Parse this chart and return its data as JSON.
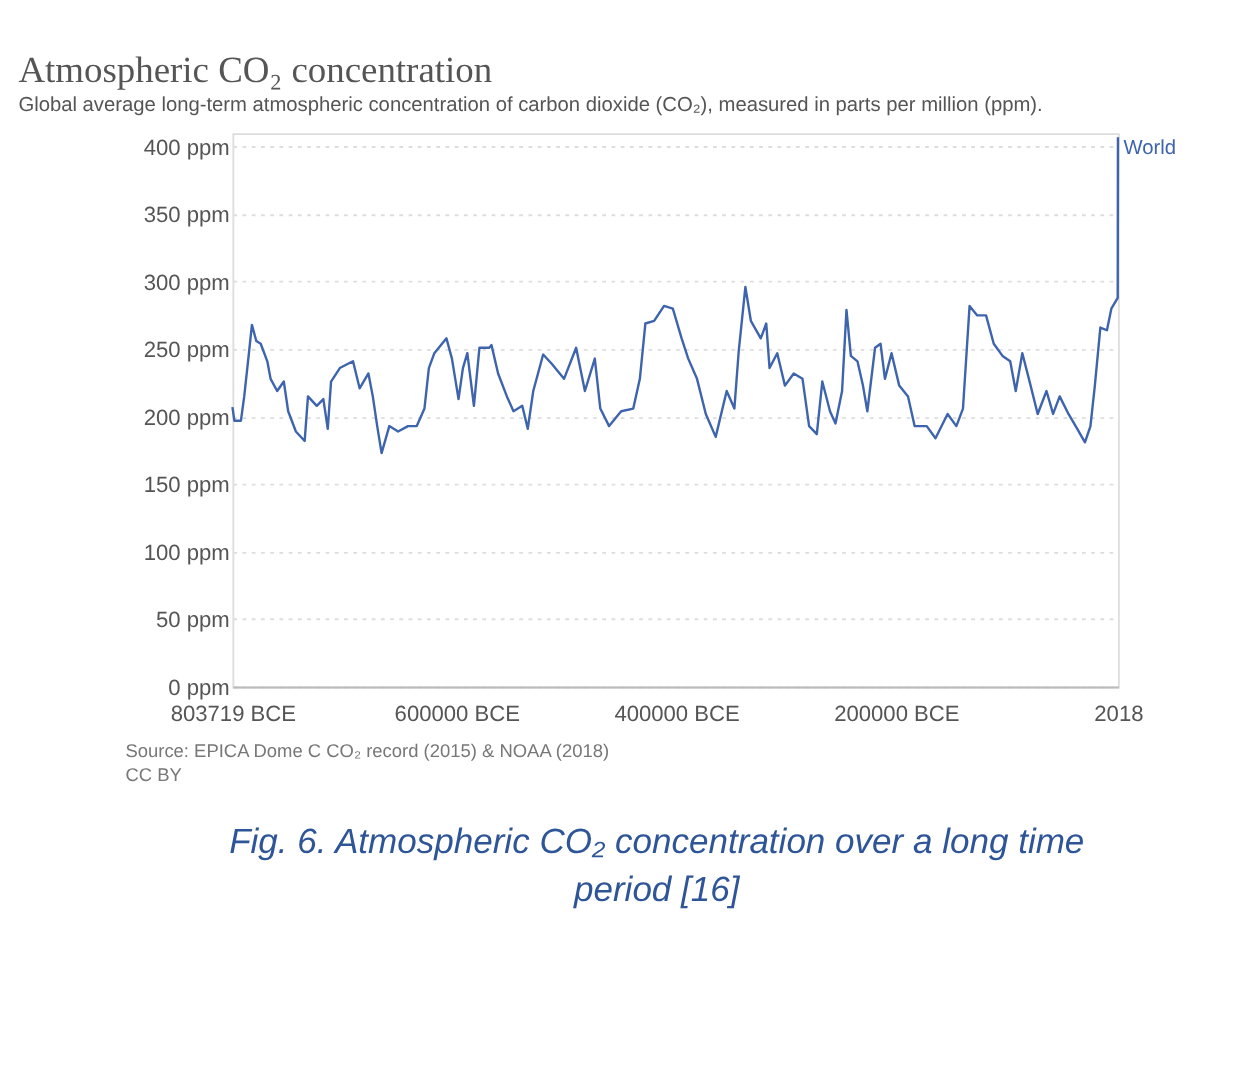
{
  "chart_data": {
    "type": "line",
    "title": "Atmospheric CO₂ concentration",
    "subtitle": "Global average long-term atmospheric concentration of carbon dioxide (CO₂), measured in parts per million (ppm).",
    "x": [
      -803719,
      -802000,
      -796000,
      -793000,
      -789000,
      -786000,
      -782000,
      -778000,
      -772000,
      -769000,
      -763000,
      -757000,
      -753000,
      -746000,
      -738000,
      -735000,
      -727000,
      -721000,
      -717000,
      -714000,
      -706000,
      -699000,
      -694000,
      -688000,
      -680000,
      -676000,
      -672000,
      -668000,
      -661000,
      -653000,
      -644000,
      -636000,
      -629000,
      -625000,
      -620000,
      -609000,
      -604000,
      -598000,
      -594000,
      -590000,
      -584000,
      -579000,
      -570000,
      -568000,
      -562000,
      -554000,
      -548000,
      -540000,
      -535000,
      -530000,
      -521000,
      -513000,
      -502000,
      -491000,
      -483000,
      -474000,
      -469000,
      -461000,
      -450000,
      -439000,
      -433000,
      -428000,
      -420000,
      -411000,
      -403000,
      -395000,
      -389000,
      -381000,
      -373000,
      -364000,
      -354000,
      -347000,
      -343000,
      -337000,
      -332000,
      -323000,
      -318000,
      -315000,
      -308000,
      -301000,
      -293000,
      -285000,
      -279000,
      -272000,
      -267000,
      -260000,
      -255000,
      -249000,
      -245000,
      -241000,
      -235000,
      -230000,
      -226000,
      -219000,
      -214000,
      -210000,
      -204000,
      -197000,
      -189000,
      -183000,
      -172000,
      -164000,
      -153000,
      -145000,
      -139000,
      -133000,
      -126000,
      -118000,
      -111000,
      -103000,
      -96000,
      -91000,
      -85000,
      -79000,
      -71000,
      -63000,
      -57000,
      -51000,
      -43000,
      -35000,
      -28000,
      -23000,
      -19000,
      -14000,
      -8000,
      -4000,
      1800,
      2018
    ],
    "series": [
      {
        "name": "World",
        "color": "#3e64ad",
        "values": [
          207,
          197,
          197,
          215,
          245,
          268,
          256,
          254,
          241,
          228,
          219,
          226,
          204,
          189,
          182,
          215,
          208,
          213,
          191,
          226,
          236,
          239,
          241,
          221,
          232,
          215,
          193,
          173,
          193,
          189,
          193,
          193,
          206,
          236,
          247,
          258,
          243,
          213,
          236,
          247,
          208,
          251,
          251,
          253,
          232,
          215,
          204,
          208,
          191,
          219,
          246,
          239,
          228,
          251,
          219,
          243,
          206,
          193,
          204,
          206,
          228,
          269,
          271,
          282,
          280,
          258,
          243,
          228,
          202,
          185,
          219,
          206,
          249,
          296,
          271,
          258,
          269,
          236,
          247,
          223,
          232,
          228,
          193,
          187,
          226,
          204,
          195,
          219,
          279,
          245,
          241,
          223,
          204,
          251,
          254,
          228,
          247,
          223,
          215,
          193,
          193,
          184,
          202,
          193,
          206,
          282,
          275,
          275,
          254,
          245,
          241,
          219,
          247,
          228,
          202,
          219,
          202,
          215,
          202,
          191,
          181,
          193,
          223,
          266,
          264,
          280,
          288,
          407
        ]
      }
    ],
    "xlim": [
      -803719,
      2018
    ],
    "xticks": [
      {
        "value": -803719,
        "label": "803719 BCE"
      },
      {
        "value": -600000,
        "label": "600000 BCE"
      },
      {
        "value": -400000,
        "label": "400000 BCE"
      },
      {
        "value": -200000,
        "label": "200000 BCE"
      },
      2018
    ],
    "ylim": [
      0,
      410
    ],
    "yticks": [
      {
        "value": 0,
        "label": "0 ppm"
      },
      {
        "value": 50,
        "label": "50 ppm"
      },
      {
        "value": 100,
        "label": "100 ppm"
      },
      {
        "value": 150,
        "label": "150 ppm"
      },
      {
        "value": 200,
        "label": "200 ppm"
      },
      {
        "value": 250,
        "label": "250 ppm"
      },
      {
        "value": 300,
        "label": "300 ppm"
      },
      {
        "value": 350,
        "label": "350 ppm"
      },
      {
        "value": 400,
        "label": "400 ppm"
      }
    ],
    "grid": "y",
    "legend": false,
    "marker": "none",
    "line_style": "solid",
    "annotations": [
      "Source: EPICA Dome C CO₂ record (2015) & NOAA (2018)",
      "CC BY",
      "Fig. 6. Atmospheric CO₂ concentration over a long time period [16]"
    ]
  }
}
